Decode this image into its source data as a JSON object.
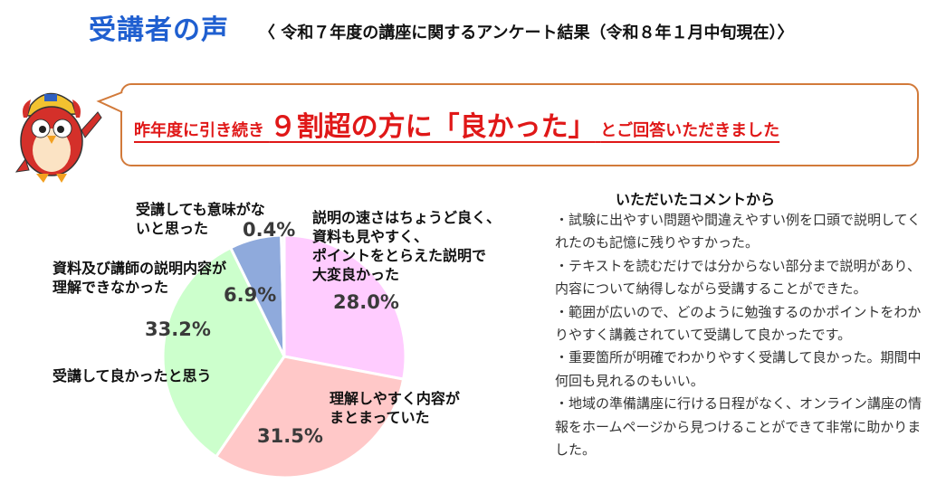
{
  "header": {
    "title": "受講者の声",
    "subtitle": "〈 令和７年度の講座に関するアンケート結果（令和８年１月中旬現在）〉"
  },
  "banner": {
    "part1": "昨年度に引き続き",
    "part2": "９割超の方に「良かった」",
    "part3": "とご回答いただきました"
  },
  "chart_data": {
    "type": "pie",
    "slices": [
      {
        "label": "説明の速さはちょうど良く、資料も見やすく、ポイントをとらえた説明で大変良かった",
        "value": 28.0,
        "value_label": "28.0%",
        "color": "#ffccff"
      },
      {
        "label": "理解しやすく内容がまとまっていた",
        "value": 31.5,
        "value_label": "31.5%",
        "color": "#ffc8c8"
      },
      {
        "label": "受講して良かったと思う",
        "value": 33.2,
        "value_label": "33.2%",
        "color": "#ccffcc"
      },
      {
        "label": "資料及び講師の説明内容が理解できなかった",
        "value": 6.9,
        "value_label": "6.9%",
        "color": "#8faadc"
      },
      {
        "label": "受講しても意味がないと思った",
        "value": 0.4,
        "value_label": "0.4%",
        "color": "#e8e8e8"
      }
    ],
    "labels_display": [
      "説明の速さはちょうど良く、\n資料も見やすく、\nポイントをとらえた説明で\n大変良かった",
      "理解しやすく内容が\nまとまっていた",
      "受講して良かったと思う",
      "資料及び講師の説明内容が\n理解できなかった",
      "受講しても意味がな\nいと思った"
    ]
  },
  "comments": {
    "title": "いただいたコメントから",
    "items": [
      "・試験に出やすい問題や間違えやすい例を口頭で説明してくれたのも記憶に残りやすかった。",
      "・テキストを読むだけでは分からない部分まで説明があり、内容について納得しながら受講することができた。",
      "・範囲が広いので、どのように勉強するのかポイントをわかりやすく講義されていて受講して良かったです。",
      "・重要箇所が明確でわかりやすく受講して良かった。期間中何回も見れるのもいい。",
      "・地域の準備講座に行ける日程がなく、オンライン講座の情報をホームページから見つけることができて非常に助かりました。"
    ]
  }
}
